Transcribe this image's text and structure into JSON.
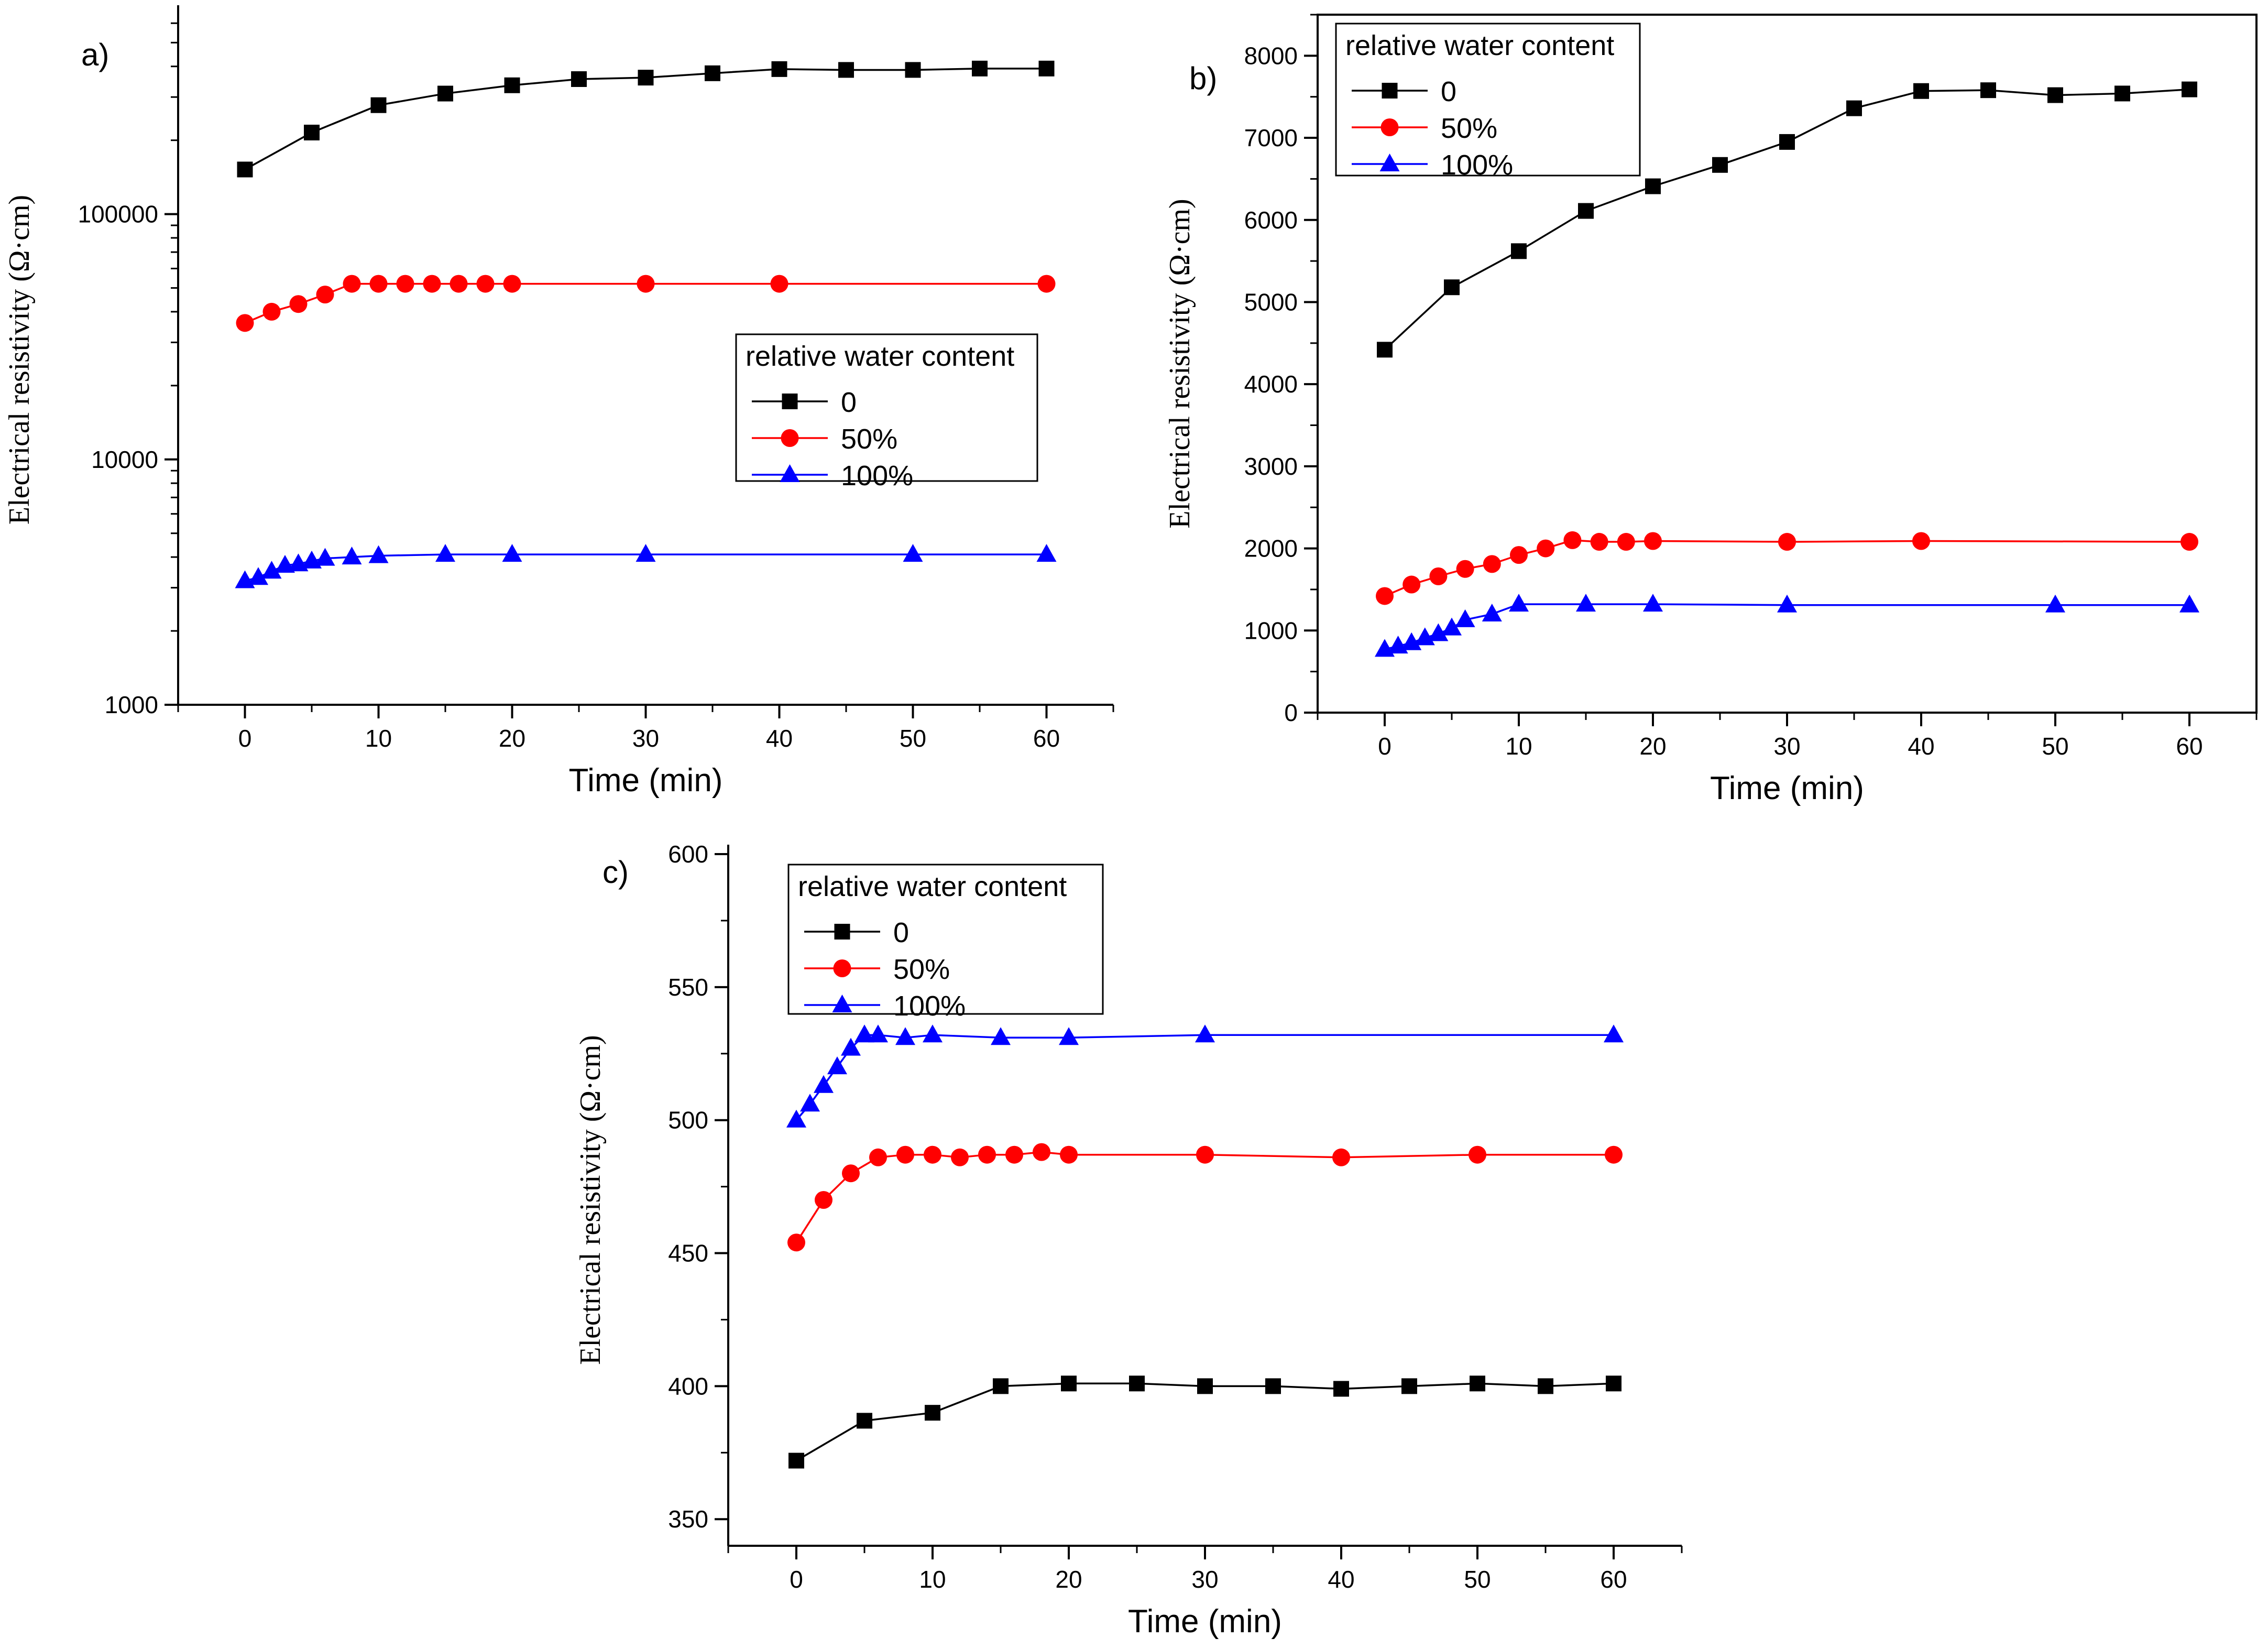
{
  "chart_data": [
    {
      "panel_label": "a)",
      "type": "line",
      "yscale": "log",
      "xlabel": "Time (min)",
      "ylabel": "Electrical resistivity (Ω·cm)",
      "xlim": [
        -5,
        65
      ],
      "xticks": [
        0,
        10,
        20,
        30,
        40,
        50,
        60
      ],
      "ylim": [
        1000,
        650000
      ],
      "yticks": [
        1000,
        10000,
        100000
      ],
      "legend": {
        "title": "relative water content",
        "placement": "center-right"
      },
      "series": [
        {
          "name": "0",
          "color": "#000000",
          "marker": "square",
          "points": [
            [
              0,
              152000
            ],
            [
              5,
              215000
            ],
            [
              10,
              278000
            ],
            [
              15,
              310000
            ],
            [
              20,
              335000
            ],
            [
              25,
              355000
            ],
            [
              30,
              360000
            ],
            [
              35,
              375000
            ],
            [
              40,
              390000
            ],
            [
              45,
              387000
            ],
            [
              50,
              387000
            ],
            [
              55,
              392000
            ],
            [
              60,
              392000
            ]
          ]
        },
        {
          "name": "50%",
          "color": "#ff0000",
          "marker": "circle",
          "points": [
            [
              0,
              36000
            ],
            [
              2,
              40000
            ],
            [
              4,
              43000
            ],
            [
              6,
              47000
            ],
            [
              8,
              52000
            ],
            [
              10,
              52000
            ],
            [
              12,
              52000
            ],
            [
              14,
              52000
            ],
            [
              16,
              52000
            ],
            [
              18,
              52000
            ],
            [
              20,
              52000
            ],
            [
              30,
              52000
            ],
            [
              40,
              52000
            ],
            [
              60,
              52000
            ]
          ]
        },
        {
          "name": "100%",
          "color": "#0000ff",
          "marker": "triangle",
          "points": [
            [
              0,
              3200
            ],
            [
              1,
              3300
            ],
            [
              2,
              3500
            ],
            [
              3,
              3700
            ],
            [
              4,
              3750
            ],
            [
              5,
              3850
            ],
            [
              6,
              3950
            ],
            [
              8,
              4000
            ],
            [
              10,
              4050
            ],
            [
              15,
              4100
            ],
            [
              20,
              4100
            ],
            [
              30,
              4100
            ],
            [
              50,
              4100
            ],
            [
              60,
              4100
            ]
          ]
        }
      ]
    },
    {
      "panel_label": "b)",
      "type": "line",
      "yscale": "linear",
      "xlabel": "Time (min)",
      "ylabel": "Electrical resistivity (Ω·cm)",
      "xlim": [
        -5,
        65
      ],
      "xticks": [
        0,
        10,
        20,
        30,
        40,
        50,
        60
      ],
      "ylim": [
        0,
        8500
      ],
      "yticks": [
        0,
        1000,
        2000,
        3000,
        4000,
        5000,
        6000,
        7000,
        8000
      ],
      "legend": {
        "title": "relative water content",
        "placement": "top-left"
      },
      "series": [
        {
          "name": "0",
          "color": "#000000",
          "marker": "square",
          "points": [
            [
              0,
              4420
            ],
            [
              5,
              5180
            ],
            [
              10,
              5620
            ],
            [
              15,
              6110
            ],
            [
              20,
              6410
            ],
            [
              25,
              6670
            ],
            [
              30,
              6950
            ],
            [
              35,
              7360
            ],
            [
              40,
              7570
            ],
            [
              45,
              7580
            ],
            [
              50,
              7520
            ],
            [
              55,
              7540
            ],
            [
              60,
              7590
            ]
          ]
        },
        {
          "name": "50%",
          "color": "#ff0000",
          "marker": "circle",
          "points": [
            [
              0,
              1420
            ],
            [
              2,
              1560
            ],
            [
              4,
              1660
            ],
            [
              6,
              1750
            ],
            [
              8,
              1810
            ],
            [
              10,
              1920
            ],
            [
              12,
              2000
            ],
            [
              14,
              2100
            ],
            [
              16,
              2080
            ],
            [
              18,
              2080
            ],
            [
              20,
              2090
            ],
            [
              30,
              2080
            ],
            [
              40,
              2090
            ],
            [
              60,
              2080
            ]
          ]
        },
        {
          "name": "100%",
          "color": "#0000ff",
          "marker": "triangle",
          "points": [
            [
              0,
              770
            ],
            [
              1,
              810
            ],
            [
              2,
              850
            ],
            [
              3,
              910
            ],
            [
              4,
              960
            ],
            [
              5,
              1030
            ],
            [
              6,
              1130
            ],
            [
              8,
              1200
            ],
            [
              10,
              1320
            ],
            [
              15,
              1320
            ],
            [
              20,
              1320
            ],
            [
              30,
              1310
            ],
            [
              50,
              1310
            ],
            [
              60,
              1310
            ]
          ]
        }
      ]
    },
    {
      "panel_label": "c)",
      "type": "line",
      "yscale": "linear",
      "xlabel": "Time (min)",
      "ylabel": "Electrical resistivity (Ω·cm)",
      "xlim": [
        -5,
        65
      ],
      "xticks": [
        0,
        10,
        20,
        30,
        40,
        50,
        60
      ],
      "ylim": [
        340,
        600
      ],
      "yticks": [
        350,
        400,
        450,
        500,
        550,
        600
      ],
      "legend": {
        "title": "relative water content",
        "placement": "top-left"
      },
      "series": [
        {
          "name": "0",
          "color": "#000000",
          "marker": "square",
          "points": [
            [
              0,
              372
            ],
            [
              5,
              387
            ],
            [
              10,
              390
            ],
            [
              15,
              400
            ],
            [
              20,
              401
            ],
            [
              25,
              401
            ],
            [
              30,
              400
            ],
            [
              35,
              400
            ],
            [
              40,
              399
            ],
            [
              45,
              400
            ],
            [
              50,
              401
            ],
            [
              55,
              400
            ],
            [
              60,
              401
            ]
          ]
        },
        {
          "name": "50%",
          "color": "#ff0000",
          "marker": "circle",
          "points": [
            [
              0,
              454
            ],
            [
              2,
              470
            ],
            [
              4,
              480
            ],
            [
              6,
              486
            ],
            [
              8,
              487
            ],
            [
              10,
              487
            ],
            [
              12,
              486
            ],
            [
              14,
              487
            ],
            [
              16,
              487
            ],
            [
              18,
              488
            ],
            [
              20,
              487
            ],
            [
              30,
              487
            ],
            [
              40,
              486
            ],
            [
              50,
              487
            ],
            [
              60,
              487
            ]
          ]
        },
        {
          "name": "100%",
          "color": "#0000ff",
          "marker": "triangle",
          "points": [
            [
              0,
              500
            ],
            [
              1,
              506
            ],
            [
              2,
              513
            ],
            [
              3,
              520
            ],
            [
              4,
              527
            ],
            [
              5,
              532
            ],
            [
              6,
              532
            ],
            [
              8,
              531
            ],
            [
              10,
              532
            ],
            [
              15,
              531
            ],
            [
              20,
              531
            ],
            [
              30,
              532
            ],
            [
              60,
              532
            ]
          ]
        }
      ]
    }
  ]
}
